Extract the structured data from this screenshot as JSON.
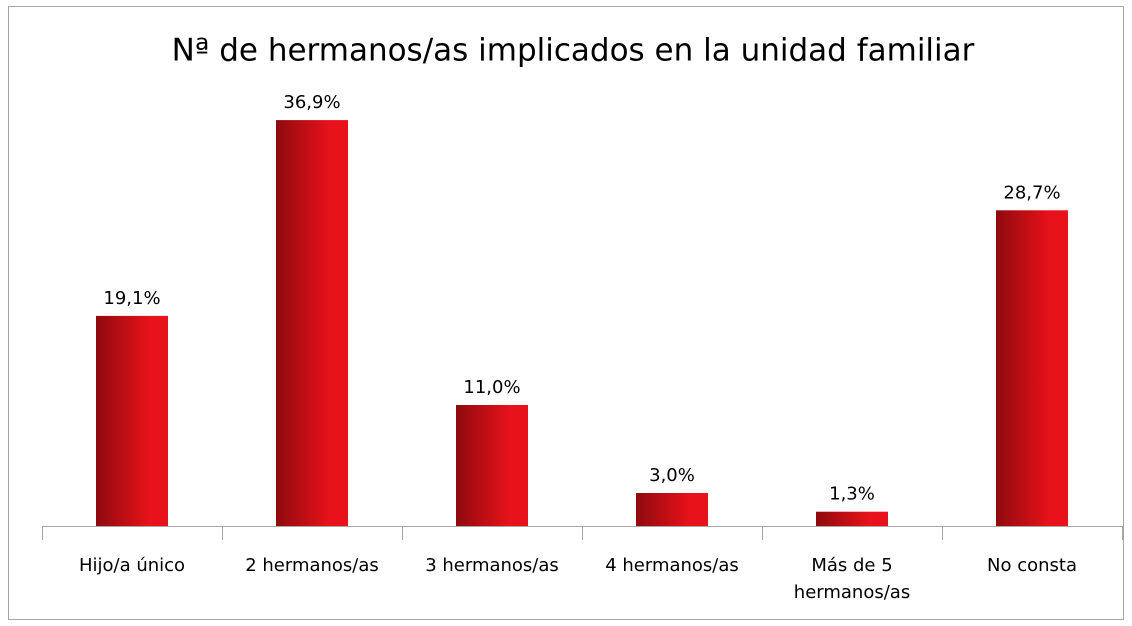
{
  "chart_data": {
    "type": "bar",
    "title": "Nª de hermanos/as implicados en la unidad familiar",
    "categories": [
      "Hijo/a único",
      "2 hermanos/as",
      "3 hermanos/as",
      "4 hermanos/as",
      "Más de 5 hermanos/as",
      "No consta"
    ],
    "values": [
      19.1,
      36.9,
      11.0,
      3.0,
      1.3,
      28.7
    ],
    "value_labels": [
      "19,1%",
      "36,9%",
      "11,0%",
      "3,0%",
      "1,3%",
      "28,7%"
    ],
    "color": "#e8121a",
    "ylim": [
      0,
      40
    ]
  }
}
